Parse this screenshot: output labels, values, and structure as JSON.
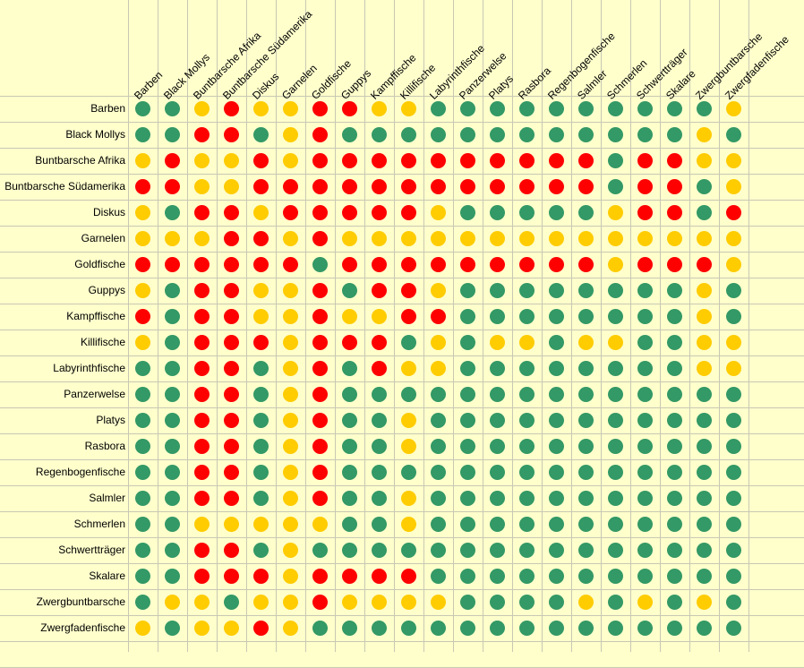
{
  "colors": {
    "g": "#339966",
    "y": "#ffcc00",
    "r": "#ff0000"
  },
  "columns": [
    "Barben",
    "Black Mollys",
    "Buntbarsche Afrika",
    "Buntbarsche Südamerika",
    "Diskus",
    "Garnelen",
    "Goldfische",
    "Guppys",
    "Kampffische",
    "Killifische",
    "Labyrinthfische",
    "Panzerwelse",
    "Platys",
    "Rasbora",
    "Regenbogenfische",
    "Salmler",
    "Schmerlen",
    "Schwertträger",
    "Skalare",
    "Zwergbuntbarsche",
    "Zwergfadenfische"
  ],
  "rows": [
    {
      "label": "Barben",
      "cells": "ggyryyrryyggggggggggy"
    },
    {
      "label": "Black Mollys",
      "cells": "ggrrgyrggggggggggggyg"
    },
    {
      "label": "Buntbarsche Afrika",
      "cells": "yryyryrrrrrrrrrrgrryy"
    },
    {
      "label": "Buntbarsche Südamerika",
      "cells": "rryyrrrrrrrrrrrrgrrgy"
    },
    {
      "label": "Diskus",
      "cells": "ygrryrrrrrygggggyrrgr"
    },
    {
      "label": "Garnelen",
      "cells": "yyyrryryyyyyyyyyyyyyy"
    },
    {
      "label": "Goldfische",
      "cells": "rrrrrrgrrrrrrrrryrrry"
    },
    {
      "label": "Guppys",
      "cells": "ygrryyrgrryggggggggyg"
    },
    {
      "label": "Kampffische",
      "cells": "rgrryyryyrrggggggggyg"
    },
    {
      "label": "Killifische",
      "cells": "ygrrryrrrgygyygyyggyy"
    },
    {
      "label": "Labyrinthfische",
      "cells": "ggrrgyrgryyggggggggyy"
    },
    {
      "label": "Panzerwelse",
      "cells": "ggrrgyrgggggggggggggg"
    },
    {
      "label": "Platys",
      "cells": "ggrrgyrggyggggggggggg"
    },
    {
      "label": "Rasbora",
      "cells": "ggrrgyrggyggggggggggg"
    },
    {
      "label": "Regenbogenfische",
      "cells": "ggrrgyrgggggggggggggg"
    },
    {
      "label": "Salmler",
      "cells": "ggrrgyrggyggggggggggg"
    },
    {
      "label": "Schmerlen",
      "cells": "ggyyyyyggyggggggggggg"
    },
    {
      "label": "Schwertträger",
      "cells": "ggrrgyggggggggggggggg"
    },
    {
      "label": "Skalare",
      "cells": "ggrrryrrrrggggggggggg"
    },
    {
      "label": "Zwergbuntbarsche",
      "cells": "gyygyyryyyyggggygygyg"
    },
    {
      "label": "Zwergfadenfische",
      "cells": "ygyyryggggggggggggggg"
    }
  ]
}
